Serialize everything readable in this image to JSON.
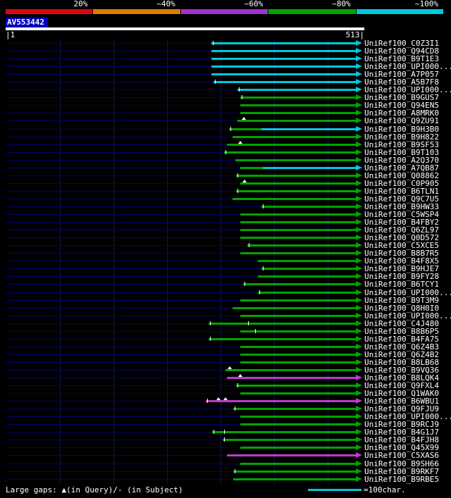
{
  "scale": {
    "segments": [
      {
        "label": "20%",
        "color": "#dd0410"
      },
      {
        "label": "~40%",
        "color": "#dd7a00"
      },
      {
        "label": "~60%",
        "color": "#a030d4"
      },
      {
        "label": "~80%",
        "color": "#00a400"
      },
      {
        "label": "~100%",
        "color": "#00c8dc"
      }
    ]
  },
  "query": {
    "name": "AV553442",
    "start_label": "|1",
    "end_label": "513|",
    "length": 513
  },
  "footer": {
    "gaps_text": "Large gaps: ▲(in Query)/- (in Subject)",
    "scale_text": "=100char."
  },
  "palette": {
    "c": "#00c8dc",
    "g": "#00a400",
    "m": "#bb3cc8"
  },
  "chart_data": {
    "type": "bar",
    "title": "AV553442",
    "xlim": [
      1,
      513
    ],
    "legend": [
      {
        "label": "20%",
        "color": "#dd0410"
      },
      {
        "label": "~40%",
        "color": "#dd7a00"
      },
      {
        "label": "~60%",
        "color": "#a030d4"
      },
      {
        "label": "~80%",
        "color": "#00a400"
      },
      {
        "label": "~100%",
        "color": "#00c8dc"
      }
    ],
    "hits": [
      {
        "label": "UniRef100_C0Z3I1",
        "seg": [
          [
            "c",
            300,
            505
          ]
        ],
        "ticks": [
          302
        ]
      },
      {
        "label": "UniRef100_Q94CD8",
        "seg": [
          [
            "c",
            300,
            505
          ]
        ]
      },
      {
        "label": "UniRef100_B9T1E3",
        "seg": [
          [
            "c",
            300,
            505
          ]
        ]
      },
      {
        "label": "UniRef100_UPI000...",
        "seg": [
          [
            "c",
            300,
            505
          ]
        ]
      },
      {
        "label": "UniRef100_A7P057",
        "seg": [
          [
            "c",
            300,
            505
          ]
        ]
      },
      {
        "label": "UniRef100_A5B7F8",
        "seg": [
          [
            "c",
            303,
            505
          ]
        ],
        "ticks": [
          305
        ]
      },
      {
        "label": "UniRef100_UPI000...",
        "seg": [
          [
            "c",
            337,
            505
          ]
        ],
        "ticks": [
          339
        ]
      },
      {
        "label": "UniRef100_B9GUS7",
        "seg": [
          [
            "g",
            341,
            505
          ]
        ],
        "ticks": [
          343
        ]
      },
      {
        "label": "UniRef100_Q94EN5",
        "seg": [
          [
            "g",
            341,
            505
          ]
        ]
      },
      {
        "label": "UniRef100_A8MRK0",
        "seg": [
          [
            "g",
            341,
            505
          ]
        ]
      },
      {
        "label": "UniRef100_Q9ZU91",
        "seg": [
          [
            "g",
            337,
            505
          ]
        ],
        "tris": [
          346
        ]
      },
      {
        "label": "UniRef100_B9H3B0",
        "seg": [
          [
            "g",
            325,
            371
          ],
          [
            "c",
            371,
            505
          ]
        ],
        "ticks": [
          327
        ]
      },
      {
        "label": "UniRef100_B9H822",
        "seg": [
          [
            "g",
            330,
            505
          ]
        ]
      },
      {
        "label": "UniRef100_B9SF53",
        "seg": [
          [
            "g",
            322,
            505
          ]
        ],
        "tris": [
          341
        ]
      },
      {
        "label": "UniRef100_B9T103",
        "seg": [
          [
            "g",
            318,
            505
          ]
        ],
        "ticks": [
          320
        ]
      },
      {
        "label": "UniRef100_A2Q370",
        "seg": [
          [
            "g",
            334,
            505
          ]
        ]
      },
      {
        "label": "UniRef100_A7QB87",
        "seg": [
          [
            "g",
            341,
            373
          ],
          [
            "c",
            373,
            505
          ]
        ]
      },
      {
        "label": "UniRef100_Q08862",
        "seg": [
          [
            "g",
            335,
            505
          ]
        ],
        "ticks": [
          337
        ]
      },
      {
        "label": "UniRef100_C0P905",
        "seg": [
          [
            "g",
            341,
            505
          ]
        ],
        "tris": [
          347
        ]
      },
      {
        "label": "UniRef100_B6TLN1",
        "seg": [
          [
            "g",
            335,
            505
          ]
        ],
        "ticks": [
          337
        ]
      },
      {
        "label": "UniRef100_Q9C7U5",
        "seg": [
          [
            "g",
            330,
            505
          ]
        ]
      },
      {
        "label": "UniRef100_B9HW33",
        "seg": [
          [
            "g",
            371,
            505
          ]
        ],
        "ticks": [
          373
        ]
      },
      {
        "label": "UniRef100_C5WSP4",
        "seg": [
          [
            "g",
            341,
            505
          ]
        ]
      },
      {
        "label": "UniRef100_B4FBY2",
        "seg": [
          [
            "g",
            341,
            505
          ]
        ]
      },
      {
        "label": "UniRef100_Q6ZL97",
        "seg": [
          [
            "g",
            341,
            505
          ]
        ]
      },
      {
        "label": "UniRef100_Q0D572",
        "seg": [
          [
            "g",
            341,
            505
          ]
        ]
      },
      {
        "label": "UniRef100_C5XCE5",
        "seg": [
          [
            "g",
            351,
            505
          ]
        ],
        "ticks": [
          353
        ]
      },
      {
        "label": "UniRef100_B8B7R5",
        "seg": [
          [
            "g",
            341,
            505
          ]
        ]
      },
      {
        "label": "UniRef100_B4F8X5",
        "seg": [
          [
            "g",
            366,
            505
          ]
        ]
      },
      {
        "label": "UniRef100_B9HJE7",
        "seg": [
          [
            "g",
            371,
            505
          ]
        ],
        "ticks": [
          373
        ]
      },
      {
        "label": "UniRef100_B9FY28",
        "seg": [
          [
            "g",
            366,
            505
          ]
        ]
      },
      {
        "label": "UniRef100_B6TCY1",
        "seg": [
          [
            "g",
            345,
            505
          ]
        ],
        "ticks": [
          347
        ]
      },
      {
        "label": "UniRef100_UPI000...",
        "seg": [
          [
            "g",
            366,
            505
          ]
        ],
        "ticks": [
          368
        ]
      },
      {
        "label": "UniRef100_B9T3M9",
        "seg": [
          [
            "g",
            341,
            505
          ]
        ]
      },
      {
        "label": "UniRef100_Q8H0I0",
        "seg": [
          [
            "g",
            330,
            505
          ]
        ]
      },
      {
        "label": "UniRef100_UPI000...",
        "seg": [
          [
            "g",
            341,
            505
          ]
        ]
      },
      {
        "label": "UniRef100_C4J480",
        "seg": [
          [
            "g",
            296,
            505
          ]
        ],
        "ticks": [
          298,
          352
        ]
      },
      {
        "label": "UniRef100_B8B6P5",
        "seg": [
          [
            "g",
            341,
            505
          ]
        ],
        "ticks": [
          362
        ]
      },
      {
        "label": "UniRef100_B4FA75",
        "seg": [
          [
            "g",
            296,
            505
          ]
        ],
        "ticks": [
          298
        ]
      },
      {
        "label": "UniRef100_Q6Z4B3",
        "seg": [
          [
            "g",
            341,
            505
          ]
        ]
      },
      {
        "label": "UniRef100_Q6Z4B2",
        "seg": [
          [
            "g",
            341,
            505
          ]
        ]
      },
      {
        "label": "UniRef100_B8LB68",
        "seg": [
          [
            "g",
            341,
            505
          ]
        ]
      },
      {
        "label": "UniRef100_B9VQ36",
        "seg": [
          [
            "g",
            320,
            505
          ]
        ],
        "tris": [
          326
        ]
      },
      {
        "label": "UniRef100_B8LQK4",
        "seg": [
          [
            "m",
            322,
            505
          ]
        ],
        "tris": [
          341
        ]
      },
      {
        "label": "UniRef100_Q9FXL4",
        "seg": [
          [
            "g",
            335,
            505
          ]
        ],
        "ticks": [
          337
        ]
      },
      {
        "label": "UniRef100_Q1WAK0",
        "seg": [
          [
            "g",
            341,
            505
          ]
        ]
      },
      {
        "label": "UniRef100_B6WBU1",
        "seg": [
          [
            "m",
            292,
            505
          ]
        ],
        "ticks": [
          294
        ],
        "tris": [
          310,
          320
        ]
      },
      {
        "label": "UniRef100_Q9FJU9",
        "seg": [
          [
            "g",
            331,
            505
          ]
        ],
        "ticks": [
          333
        ]
      },
      {
        "label": "UniRef100_UPI000...",
        "seg": [
          [
            "g",
            341,
            505
          ]
        ]
      },
      {
        "label": "UniRef100_B9RCJ9",
        "seg": [
          [
            "g",
            341,
            505
          ]
        ]
      },
      {
        "label": "UniRef100_B4G1J7",
        "seg": [
          [
            "g",
            301,
            505
          ]
        ],
        "ticks": [
          303,
          318
        ]
      },
      {
        "label": "UniRef100_B4FJH8",
        "seg": [
          [
            "g",
            316,
            505
          ]
        ],
        "ticks": [
          318
        ]
      },
      {
        "label": "UniRef100_Q45X99",
        "seg": [
          [
            "g",
            341,
            505
          ]
        ]
      },
      {
        "label": "UniRef100_C5XAS6",
        "seg": [
          [
            "m",
            322,
            505
          ]
        ]
      },
      {
        "label": "UniRef100_B9SH66",
        "seg": [
          [
            "g",
            341,
            505
          ]
        ]
      },
      {
        "label": "UniRef100_B9RKF7",
        "seg": [
          [
            "g",
            331,
            505
          ]
        ],
        "ticks": [
          333
        ]
      },
      {
        "label": "UniRef100_B9RBE5",
        "seg": [
          [
            "g",
            331,
            505
          ]
        ]
      }
    ]
  }
}
